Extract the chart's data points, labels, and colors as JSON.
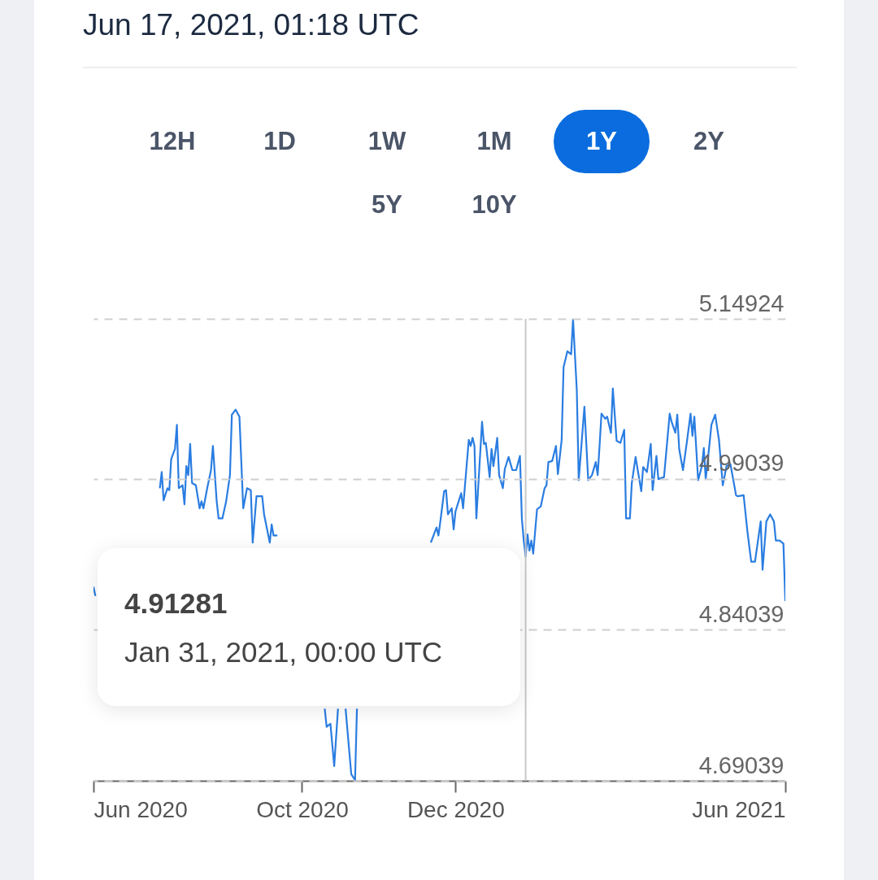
{
  "chart_data": {
    "type": "line",
    "title": "Jun 17, 2021, 01:18 UTC",
    "color": "#2a7de1",
    "grid": "y",
    "x": [
      "2020-06-17",
      "2020-06-18",
      "2020-06-19",
      "2020-07-22",
      "2020-07-23",
      "2020-07-24",
      "2020-07-26",
      "2020-07-27",
      "2020-07-28",
      "2020-07-30",
      "2020-07-31",
      "2020-08-01",
      "2020-08-03",
      "2020-08-04",
      "2020-08-05",
      "2020-08-06",
      "2020-08-07",
      "2020-08-08",
      "2020-08-10",
      "2020-08-12",
      "2020-08-13",
      "2020-08-14",
      "2020-08-16",
      "2020-08-18",
      "2020-08-19",
      "2020-08-21",
      "2020-08-22",
      "2020-08-24",
      "2020-08-26",
      "2020-08-28",
      "2020-08-29",
      "2020-08-31",
      "2020-09-02",
      "2020-09-04",
      "2020-09-06",
      "2020-09-08",
      "2020-09-09",
      "2020-09-11",
      "2020-09-14",
      "2020-09-15",
      "2020-09-18",
      "2020-09-19",
      "2020-09-20",
      "2020-09-22",
      "2020-09-24",
      "2020-10-17",
      "2020-10-18",
      "2020-10-20",
      "2020-10-22",
      "2020-10-24",
      "2020-10-26",
      "2020-10-28",
      "2020-10-31",
      "2020-11-02",
      "2020-11-03",
      "2020-11-05",
      "2020-12-12",
      "2020-12-14",
      "2020-12-15",
      "2020-12-16",
      "2020-12-17",
      "2020-12-19",
      "2020-12-20",
      "2020-12-21",
      "2020-12-23",
      "2020-12-24",
      "2020-12-25",
      "2020-12-28",
      "2020-12-29",
      "2020-12-30",
      "2021-01-01",
      "2021-01-02",
      "2021-01-03",
      "2021-01-04",
      "2021-01-05",
      "2021-01-08",
      "2021-01-09",
      "2021-01-10",
      "2021-01-12",
      "2021-01-13",
      "2021-01-14",
      "2021-01-16",
      "2021-01-17",
      "2021-01-19",
      "2021-01-20",
      "2021-01-22",
      "2021-01-24",
      "2021-01-26",
      "2021-01-28",
      "2021-01-29",
      "2021-01-30",
      "2021-01-31",
      "2021-02-01",
      "2021-02-02",
      "2021-02-03",
      "2021-02-04",
      "2021-02-06",
      "2021-02-08",
      "2021-02-10",
      "2021-02-11",
      "2021-02-12",
      "2021-02-14",
      "2021-02-16",
      "2021-02-17",
      "2021-02-19",
      "2021-02-20",
      "2021-02-22",
      "2021-02-24",
      "2021-02-25",
      "2021-02-27",
      "2021-02-28",
      "2021-03-01",
      "2021-03-03",
      "2021-03-05",
      "2021-03-07",
      "2021-03-09",
      "2021-03-10",
      "2021-03-11",
      "2021-03-12",
      "2021-03-14",
      "2021-03-15",
      "2021-03-17",
      "2021-03-18",
      "2021-03-20",
      "2021-03-22",
      "2021-03-24",
      "2021-03-25",
      "2021-03-27",
      "2021-03-28",
      "2021-03-30",
      "2021-04-02",
      "2021-04-03",
      "2021-04-05",
      "2021-04-07",
      "2021-04-08",
      "2021-04-10",
      "2021-04-11",
      "2021-04-14",
      "2021-04-17",
      "2021-04-18",
      "2021-04-20",
      "2021-04-21",
      "2021-04-22",
      "2021-04-24",
      "2021-04-26",
      "2021-04-28",
      "2021-04-29",
      "2021-04-30",
      "2021-05-02",
      "2021-05-04",
      "2021-05-05",
      "2021-05-06",
      "2021-05-08",
      "2021-05-09",
      "2021-05-11",
      "2021-05-13",
      "2021-05-15",
      "2021-05-17",
      "2021-05-19",
      "2021-05-20",
      "2021-05-22",
      "2021-05-23",
      "2021-05-26",
      "2021-05-28",
      "2021-05-30",
      "2021-06-01",
      "2021-06-04",
      "2021-06-05",
      "2021-06-07",
      "2021-06-09",
      "2021-06-11",
      "2021-06-12",
      "2021-06-14",
      "2021-06-16",
      "2021-06-17"
    ],
    "values": [
      4.883,
      4.874,
      null,
      4.981,
      4.997,
      4.969,
      4.981,
      4.979,
      5.01,
      5.02,
      5.044,
      4.981,
      4.984,
      4.965,
      5.003,
      4.994,
      5.025,
      4.986,
      4.984,
      4.961,
      4.968,
      4.961,
      4.981,
      4.999,
      5.023,
      4.968,
      4.951,
      4.951,
      4.968,
      4.994,
      5.054,
      5.059,
      5.052,
      4.961,
      4.981,
      4.979,
      4.927,
      4.973,
      4.973,
      4.955,
      4.927,
      4.945,
      4.934,
      4.934,
      null,
      4.762,
      4.744,
      4.747,
      4.705,
      4.762,
      null,
      4.762,
      4.697,
      4.691,
      4.762,
      null,
      4.927,
      4.937,
      4.942,
      4.934,
      4.948,
      4.978,
      4.979,
      4.955,
      4.961,
      4.94,
      4.958,
      4.976,
      4.961,
      4.984,
      5.029,
      5.023,
      5.031,
      5.023,
      4.951,
      5.047,
      5.025,
      5.026,
      4.992,
      5.02,
      5.003,
      5.031,
      4.994,
      4.981,
      5.0,
      5.012,
      4.999,
      4.999,
      5.013,
      4.951,
      4.929,
      4.913,
      4.935,
      4.919,
      4.929,
      4.916,
      4.96,
      4.963,
      4.981,
      4.984,
      5.007,
      5.008,
      5.023,
      4.995,
      5.029,
      5.101,
      5.117,
      5.114,
      5.149,
      5.078,
      4.989,
      5.013,
      5.062,
      4.989,
      4.994,
      5.007,
      4.994,
      5.023,
      5.055,
      5.05,
      5.052,
      5.036,
      5.08,
      5.028,
      5.026,
      5.039,
      4.951,
      4.951,
      4.986,
      5.012,
      4.978,
      5.002,
      4.997,
      5.025,
      4.979,
      5.013,
      4.99,
      4.992,
      5.055,
      5.047,
      5.036,
      5.054,
      5.02,
      4.999,
      5.026,
      5.055,
      5.033,
      5.052,
      4.989,
      5.003,
      5.021,
      4.99,
      5.025,
      5.044,
      5.054,
      5.029,
      4.984,
      5.003,
      5.005,
      4.995,
      4.974,
      4.973,
      4.974,
      4.938,
      4.908,
      4.908,
      4.948,
      4.9,
      4.948,
      4.955,
      4.948,
      4.929,
      4.929,
      4.926,
      4.869
    ],
    "xlim": [
      "2020-06-17",
      "2021-06-17"
    ],
    "xticks": [
      {
        "value": "2020-06-17",
        "label": "Jun 2020"
      },
      {
        "value": "2020-10-05",
        "label": "Oct 2020"
      },
      {
        "value": "2020-12-25",
        "label": "Dec 2020"
      },
      {
        "value": "2021-06-17",
        "label": "Jun 2021"
      }
    ],
    "ylim": [
      4.69039,
      5.14924
    ],
    "yticks": [
      4.69039,
      4.84039,
      4.99039,
      5.14924
    ],
    "ref_lines": [
      {
        "axis": "x",
        "value": "2021-01-31",
        "color": "#c8c8c8"
      }
    ],
    "annotations": [
      "12H",
      "1D",
      "1W",
      "1M",
      "1Y",
      "2Y",
      "5Y",
      "10Y",
      "4.91281",
      "Jan 31, 2021, 00:00 UTC"
    ]
  }
}
